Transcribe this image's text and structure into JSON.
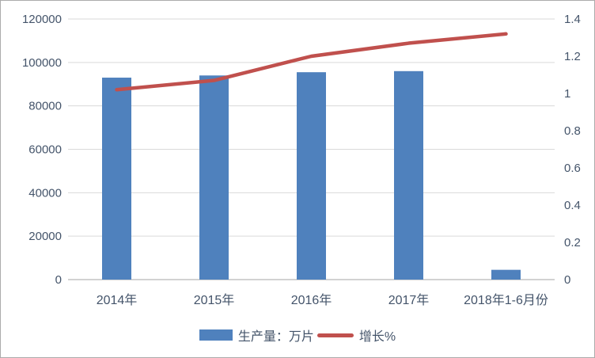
{
  "chart_data": {
    "type": "combo",
    "title": "",
    "categories": [
      "2014年",
      "2015年",
      "2016年",
      "2017年",
      "2018年1-6月份"
    ],
    "series": [
      {
        "name": "生产量：万片",
        "type": "bar",
        "axis": "left",
        "values": [
          93000,
          94000,
          95500,
          96000,
          4500
        ]
      },
      {
        "name": "增长%",
        "type": "line",
        "axis": "right",
        "values": [
          1.02,
          1.07,
          1.2,
          1.27,
          1.32
        ]
      }
    ],
    "left_axis": {
      "min": 0,
      "max": 120000,
      "step": 20000,
      "labels": [
        "0",
        "20000",
        "40000",
        "60000",
        "80000",
        "100000",
        "120000"
      ]
    },
    "right_axis": {
      "min": 0,
      "max": 1.4,
      "step": 0.2,
      "labels": [
        "0",
        "0.2",
        "0.4",
        "0.6",
        "0.8",
        "1",
        "1.2",
        "1.4"
      ]
    },
    "grid": true,
    "legend_position": "bottom",
    "colors": {
      "bar": "#4F81BD",
      "line": "#C0504D",
      "gridline": "#D9D9D9",
      "axis_line": "#C3C3C3",
      "text": "#44546A",
      "background": "#FFFFFF",
      "border": "#ABABAB"
    }
  }
}
